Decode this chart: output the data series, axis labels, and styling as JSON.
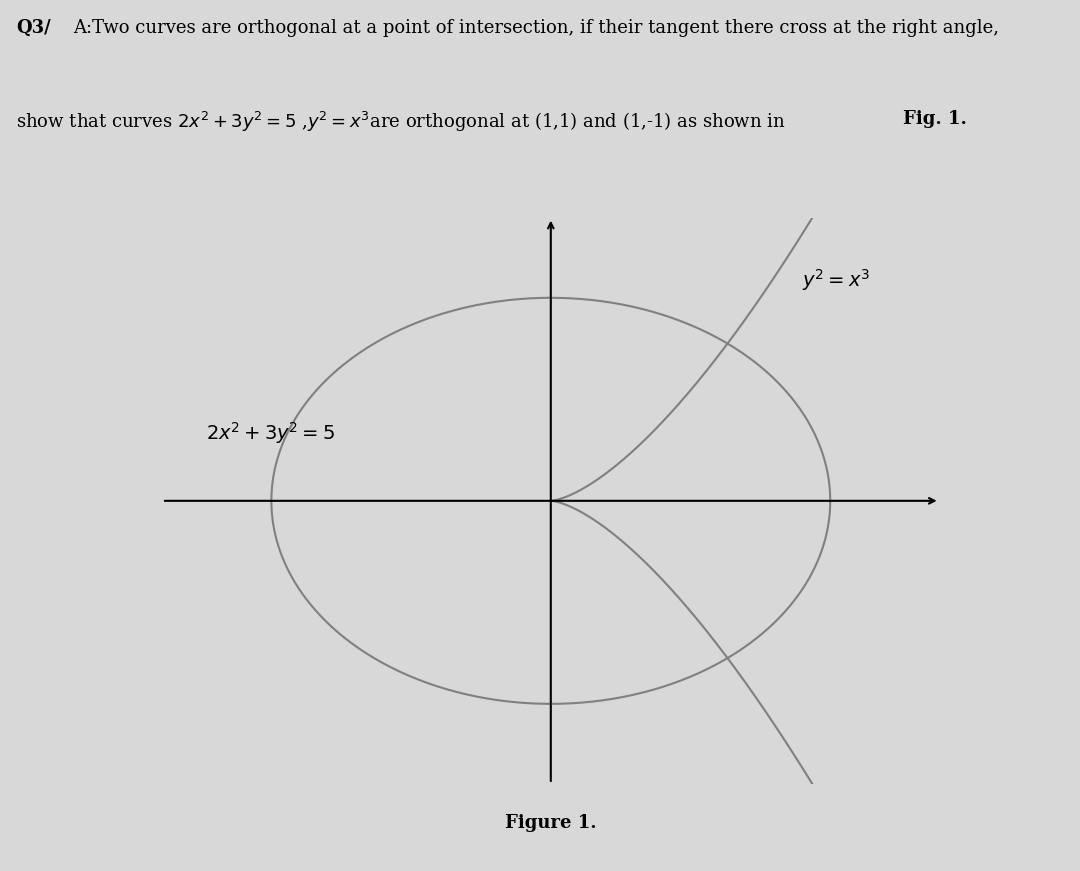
{
  "figure_label": "Figure 1.",
  "ellipse_label": "$2x^2 + 3y^2 = 5$",
  "curve_label": "$y^2 = x^3$",
  "bg_color": "#ffffff",
  "outer_bg": "#d8d8d8",
  "axis_color": "#000000",
  "curve_color": "#808080",
  "text_color": "#000000",
  "xlim": [
    -2.2,
    2.2
  ],
  "ylim": [
    -1.8,
    1.8
  ]
}
